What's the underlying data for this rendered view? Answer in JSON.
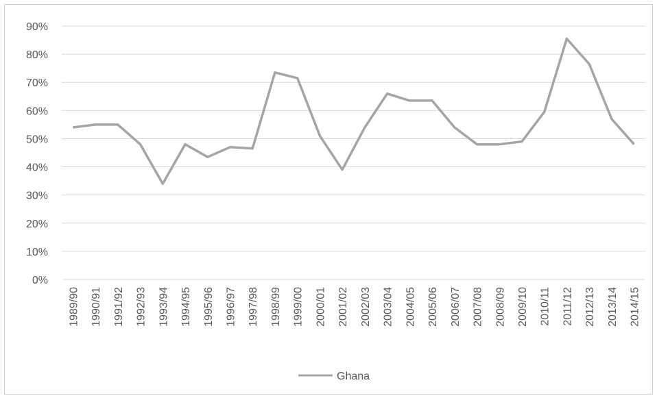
{
  "chart_data": {
    "type": "line",
    "title": "",
    "xlabel": "",
    "ylabel": "",
    "categories": [
      "1989/90",
      "1990/91",
      "1991/92",
      "1992/93",
      "1993/94",
      "1994/95",
      "1995/96",
      "1996/97",
      "1997/98",
      "1998/99",
      "1999/00",
      "2000/01",
      "2001/02",
      "2002/03",
      "2003/04",
      "2004/05",
      "2005/06",
      "2006/07",
      "2007/08",
      "2008/09",
      "2009/10",
      "2010/11",
      "2011/12",
      "2012/13",
      "2013/14",
      "2014/15"
    ],
    "yticks": [
      "0%",
      "10%",
      "20%",
      "30%",
      "40%",
      "50%",
      "60%",
      "70%",
      "80%",
      "90%"
    ],
    "ylim": [
      0,
      90
    ],
    "grid": true,
    "legend_position": "bottom",
    "series": [
      {
        "name": "Ghana",
        "color": "#a5a5a5",
        "values": [
          54,
          55,
          55,
          48,
          34,
          48,
          43.5,
          47,
          46.5,
          73.5,
          71.5,
          51,
          39,
          54,
          66,
          63.5,
          63.5,
          54,
          48,
          48,
          49,
          59.5,
          85.5,
          76.5,
          57,
          48
        ]
      }
    ]
  }
}
